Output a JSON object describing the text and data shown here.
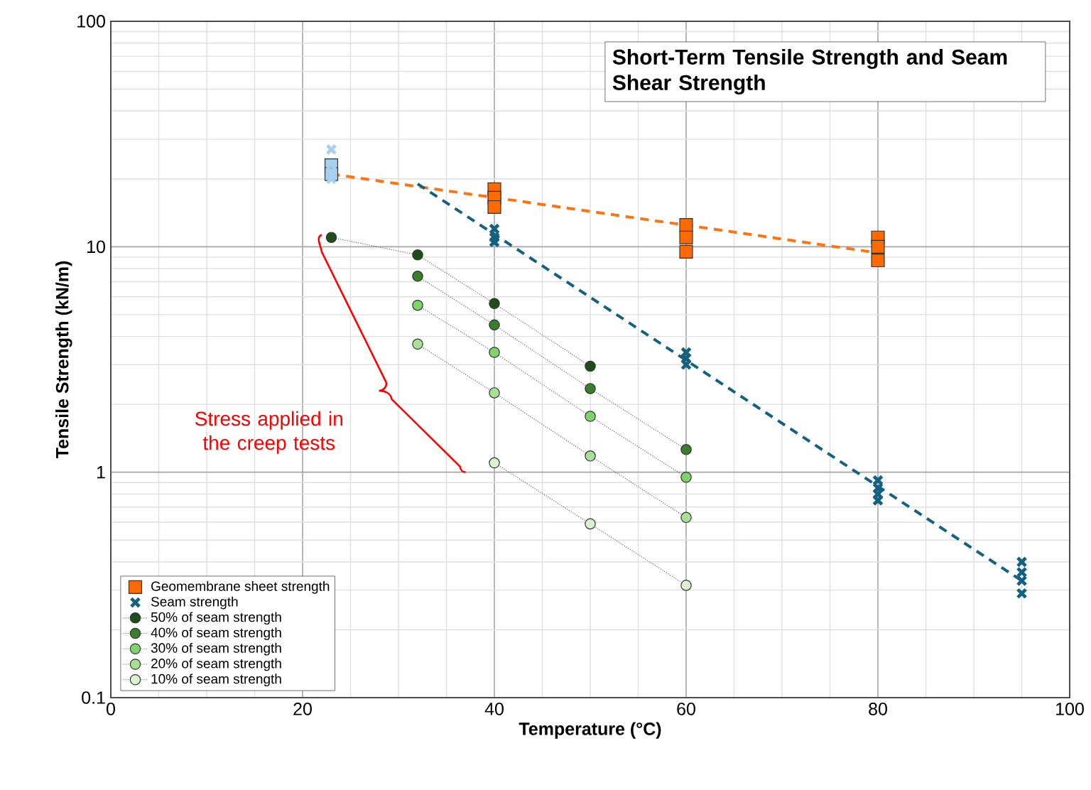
{
  "chart_data": {
    "type": "scatter",
    "title": "Short-Term Tensile Strength and Seam Shear Strength",
    "xlabel": "Temperature (°C)",
    "ylabel": "Tensile Strength (kN/m)",
    "xlim": [
      0,
      100
    ],
    "xticks": [
      0,
      20,
      40,
      60,
      80,
      100
    ],
    "ylim": [
      0.1,
      100
    ],
    "yticks": [
      0.1,
      1,
      10,
      100
    ],
    "log": "y",
    "grid": true,
    "legend": "bottom left",
    "annotations": [
      "Stress applied in the creep tests"
    ],
    "series": [
      {
        "type": "line",
        "color": "#ff7411",
        "line_style": "dashed",
        "marker": "none",
        "x": [
          23,
          80
        ],
        "values": [
          21,
          9.4
        ]
      },
      {
        "type": "line",
        "color": "#16607f",
        "line_style": "dashed",
        "marker": "none",
        "x": [
          32,
          95
        ],
        "values": [
          19,
          0.33
        ]
      },
      {
        "color": "#a9cfee",
        "marker": "square",
        "x": [
          23,
          23
        ],
        "values": [
          23,
          21
        ]
      },
      {
        "color": "#a9cfee",
        "marker": "cross",
        "x": [
          23,
          23,
          23
        ],
        "values": [
          27,
          23,
          20
        ]
      },
      {
        "name": "Geomembrane sheet strength",
        "color": "#ff6a00",
        "marker": "square",
        "x": [
          40,
          40,
          40,
          60,
          60,
          60,
          80,
          80,
          80
        ],
        "values": [
          18,
          16.5,
          15,
          12.5,
          11,
          9.5,
          11,
          10,
          8.7
        ]
      },
      {
        "name": "Seam strength",
        "color": "#16607f",
        "marker": "cross",
        "x": [
          40,
          40,
          40,
          60,
          60,
          60,
          80,
          80,
          80,
          80,
          95,
          95,
          95,
          95
        ],
        "values": [
          12,
          11,
          10.5,
          3.4,
          3.2,
          3.0,
          0.92,
          0.85,
          0.8,
          0.75,
          0.4,
          0.36,
          0.33,
          0.29
        ]
      },
      {
        "name": "50% of seam strength",
        "type": "line",
        "color": "#1f4d1a",
        "marker": "circle",
        "line_style": "dotted",
        "x": [
          23,
          32,
          40,
          50
        ],
        "values": [
          11,
          9.2,
          5.6,
          2.95
        ]
      },
      {
        "name": "40% of seam strength",
        "type": "line",
        "color": "#3a7d2a",
        "marker": "circle",
        "line_style": "dotted",
        "x": [
          32,
          40,
          50,
          60
        ],
        "values": [
          7.4,
          4.5,
          2.35,
          1.26
        ]
      },
      {
        "name": "30% of seam strength",
        "type": "line",
        "color": "#7fd36a",
        "marker": "circle",
        "line_style": "dotted",
        "x": [
          32,
          40,
          50,
          60
        ],
        "values": [
          5.5,
          3.4,
          1.77,
          0.95
        ]
      },
      {
        "name": "20% of seam strength",
        "type": "line",
        "color": "#a8e096",
        "marker": "circle",
        "line_style": "dotted",
        "x": [
          32,
          40,
          50,
          60
        ],
        "values": [
          3.7,
          2.25,
          1.18,
          0.63
        ]
      },
      {
        "name": "10% of seam strength",
        "type": "line",
        "color": "#daf2cf",
        "marker": "circle",
        "line_style": "dotted",
        "x": [
          40,
          50,
          60
        ],
        "values": [
          1.1,
          0.59,
          0.315
        ]
      }
    ]
  }
}
